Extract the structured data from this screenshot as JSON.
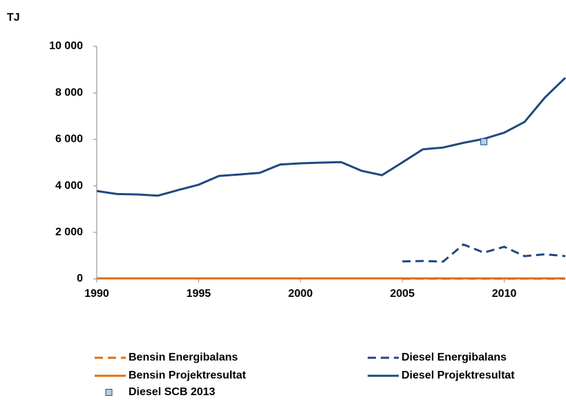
{
  "chart_data": {
    "type": "line",
    "y_label": "TJ",
    "x": [
      1990,
      1991,
      1992,
      1993,
      1994,
      1995,
      1996,
      1997,
      1998,
      1999,
      2000,
      2001,
      2002,
      2003,
      2004,
      2005,
      2006,
      2007,
      2008,
      2009,
      2010,
      2011,
      2012,
      2013
    ],
    "xlim": [
      1990,
      2013
    ],
    "xticks": [
      1990,
      1995,
      2000,
      2005,
      2010
    ],
    "ylim": [
      0,
      10000
    ],
    "yticks": [
      0,
      {
        "value": 2000,
        "label": "2 000"
      },
      {
        "value": 4000,
        "label": "4 000"
      },
      {
        "value": 6000,
        "label": "6 000"
      },
      {
        "value": 8000,
        "label": "8 000"
      },
      {
        "value": 10000,
        "label": "10 000"
      }
    ],
    "series": [
      {
        "name": "Bensin Energibalans",
        "color": "#e46c0a",
        "style": "dashed",
        "values": [
          null,
          null,
          null,
          null,
          null,
          null,
          null,
          null,
          null,
          null,
          null,
          null,
          null,
          null,
          null,
          10,
          10,
          10,
          10,
          10,
          10,
          10,
          10,
          10
        ]
      },
      {
        "name": "Diesel Energibalans",
        "color": "#1f497d",
        "style": "dashed",
        "values": [
          null,
          null,
          null,
          null,
          null,
          null,
          null,
          null,
          null,
          null,
          null,
          null,
          null,
          null,
          null,
          750,
          770,
          740,
          1480,
          1130,
          1380,
          980,
          1060,
          980
        ]
      },
      {
        "name": "Bensin Projektresultat",
        "color": "#e46c0a",
        "style": "solid",
        "values": [
          20,
          20,
          20,
          20,
          20,
          20,
          20,
          20,
          20,
          20,
          20,
          20,
          20,
          20,
          20,
          20,
          20,
          20,
          20,
          20,
          20,
          20,
          20,
          20
        ]
      },
      {
        "name": "Diesel Projektresultat",
        "color": "#1f497d",
        "style": "solid",
        "values": [
          3780,
          3650,
          3630,
          3580,
          3820,
          4050,
          4430,
          4490,
          4560,
          4920,
          4970,
          5000,
          5020,
          4650,
          4460,
          5010,
          5570,
          5650,
          5850,
          6020,
          6290,
          6750,
          7800,
          8650
        ]
      },
      {
        "name": "Diesel SCB 2013",
        "color": "#1f497d",
        "fill": "#b9cde5",
        "style": "marker",
        "values": [
          null,
          null,
          null,
          null,
          null,
          null,
          null,
          null,
          null,
          null,
          null,
          null,
          null,
          null,
          null,
          null,
          null,
          null,
          null,
          5900,
          null,
          null,
          null,
          null
        ]
      }
    ]
  }
}
